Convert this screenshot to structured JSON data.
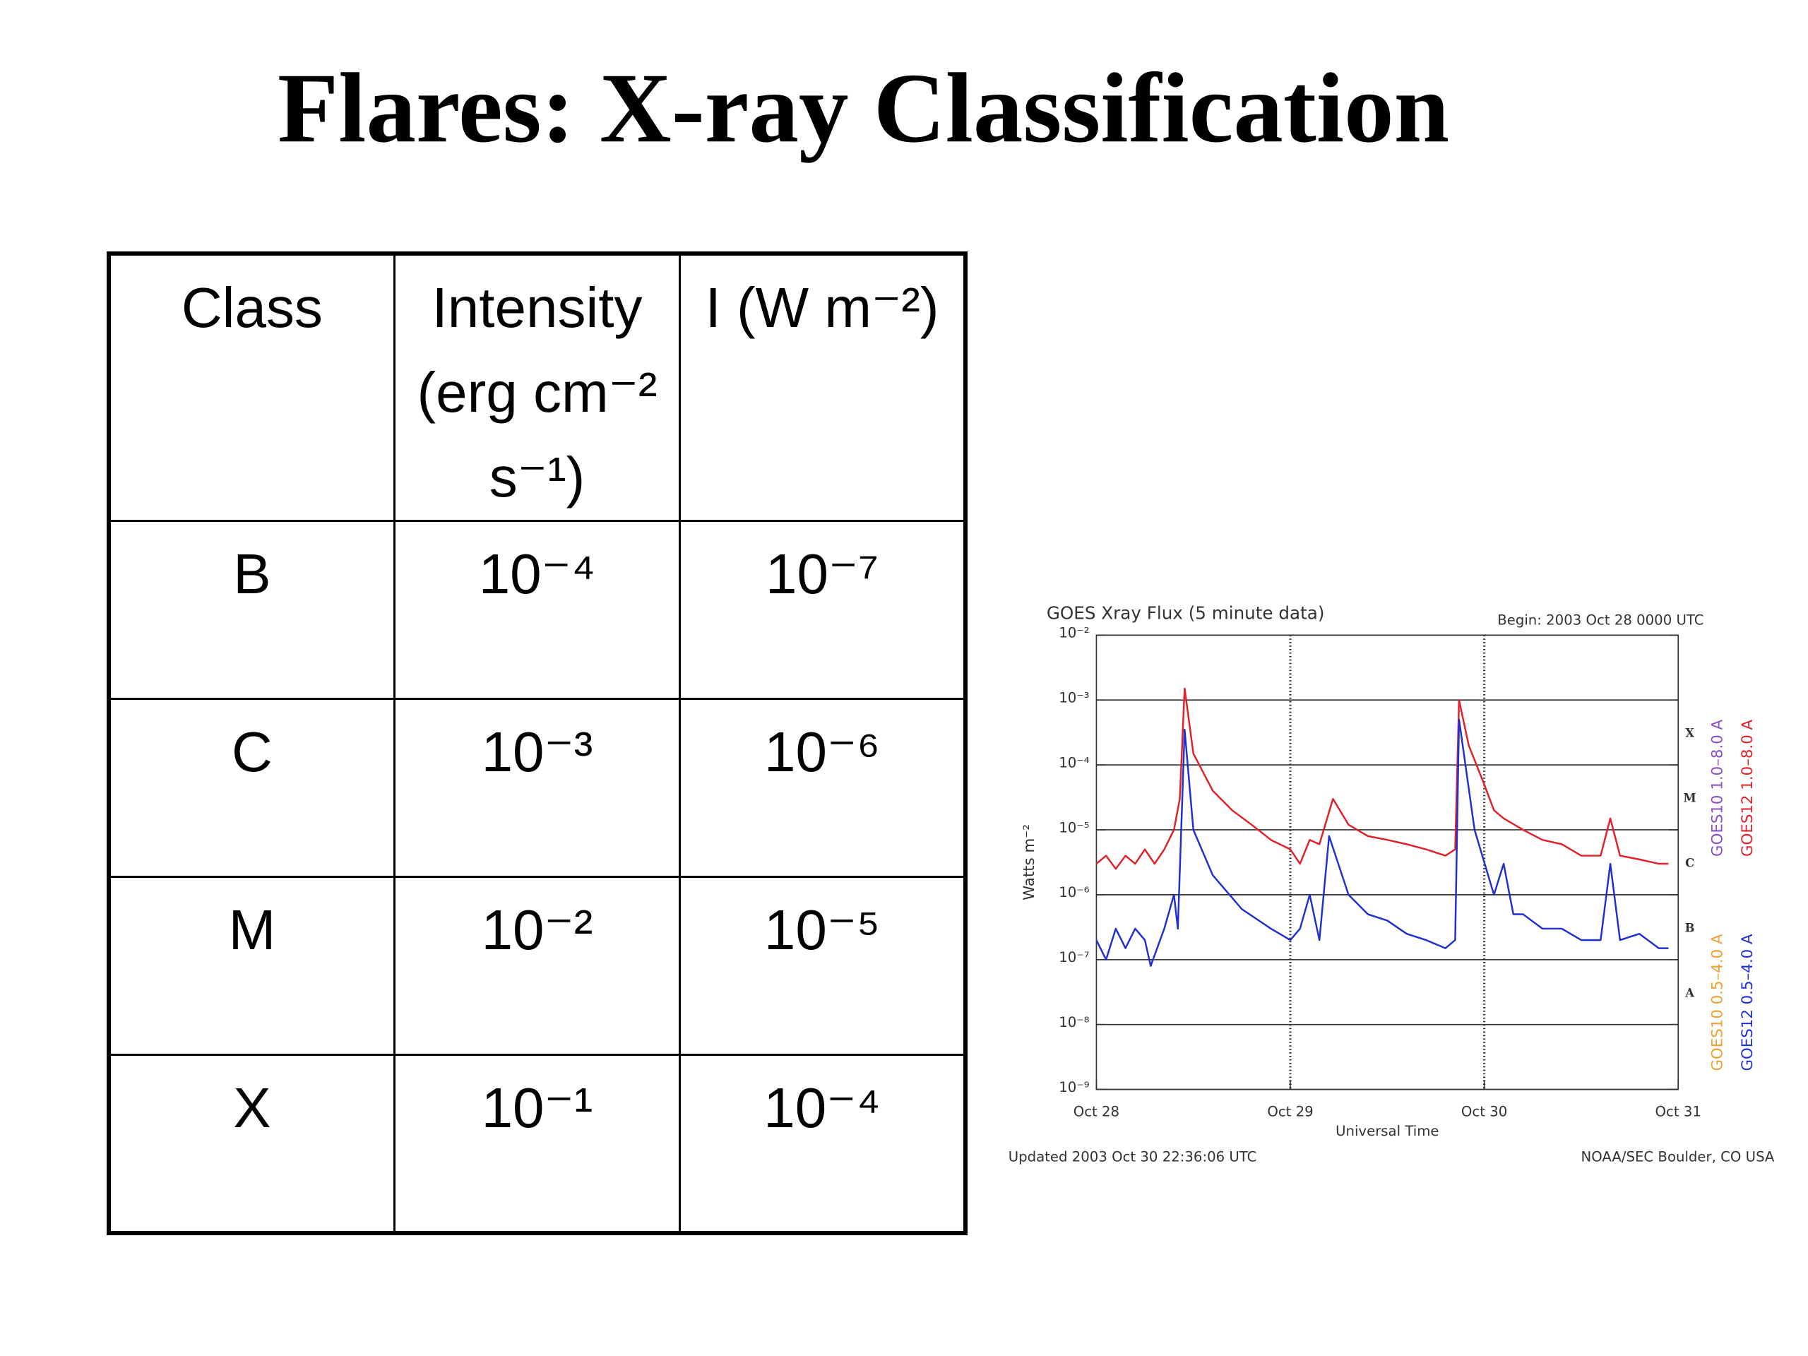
{
  "title": "Flares: X-ray Classification",
  "table": {
    "header": [
      "Class",
      "Intensity (erg cm⁻² s⁻¹)",
      "I (W m⁻²)"
    ],
    "rows": [
      [
        "B",
        "10⁻⁴",
        "10⁻⁷"
      ],
      [
        "C",
        "10⁻³",
        "10⁻⁶"
      ],
      [
        "M",
        "10⁻²",
        "10⁻⁵"
      ],
      [
        "X",
        "10⁻¹",
        "10⁻⁴"
      ]
    ]
  },
  "chart_data": {
    "type": "line",
    "title": "GOES Xray Flux (5 minute data)",
    "subtitle": "Begin:  2003 Oct 28 0000 UTC",
    "x_label": "Universal Time",
    "y_label": "Watts m⁻²",
    "footer_left": "Updated 2003 Oct 30 22:36:06 UTC",
    "footer_right": "NOAA/SEC Boulder, CO USA",
    "xlim": [
      0,
      3
    ],
    "xticks": [
      {
        "value": 0,
        "label": "Oct 28"
      },
      {
        "value": 1,
        "label": "Oct 29"
      },
      {
        "value": 2,
        "label": "Oct 30"
      },
      {
        "value": 3,
        "label": "Oct 31"
      }
    ],
    "ylim": [
      1e-09,
      0.01
    ],
    "log_scale": true,
    "grid": true,
    "yticks": [
      {
        "value": 1e-09,
        "label": "10⁻⁹"
      },
      {
        "value": 1e-08,
        "label": "10⁻⁸"
      },
      {
        "value": 1e-07,
        "label": "10⁻⁷"
      },
      {
        "value": 1e-06,
        "label": "10⁻⁶"
      },
      {
        "value": 1e-05,
        "label": "10⁻⁵"
      },
      {
        "value": 0.0001,
        "label": "10⁻⁴"
      },
      {
        "value": 0.001,
        "label": "10⁻³"
      },
      {
        "value": 0.01,
        "label": "10⁻²"
      }
    ],
    "class_labels": [
      {
        "label": "A",
        "value": 1e-08
      },
      {
        "label": "B",
        "value": 1e-07
      },
      {
        "label": "C",
        "value": 1e-06
      },
      {
        "label": "M",
        "value": 1e-05
      },
      {
        "label": "X",
        "value": 0.0001
      }
    ],
    "series": [
      {
        "name": "GOES10 1.0–8.0 A",
        "color": "#8a4fc4",
        "x": [],
        "values": []
      },
      {
        "name": "GOES12 1.0–8.0 A",
        "color": "#e0202a",
        "x": [
          0,
          0.05,
          0.1,
          0.15,
          0.2,
          0.25,
          0.3,
          0.35,
          0.4,
          0.43,
          0.455,
          0.5,
          0.6,
          0.7,
          0.8,
          0.9,
          1.0,
          1.05,
          1.1,
          1.15,
          1.22,
          1.3,
          1.4,
          1.5,
          1.6,
          1.7,
          1.8,
          1.85,
          1.87,
          1.92,
          2.0,
          2.05,
          2.1,
          2.2,
          2.3,
          2.4,
          2.5,
          2.6,
          2.65,
          2.7,
          2.8,
          2.9,
          2.95
        ],
        "values": [
          3e-06,
          4e-06,
          2.5e-06,
          4e-06,
          3e-06,
          5e-06,
          3e-06,
          5e-06,
          1e-05,
          3e-05,
          0.0015,
          0.00015,
          4e-05,
          2e-05,
          1.2e-05,
          7e-06,
          5e-06,
          3e-06,
          7e-06,
          6e-06,
          3e-05,
          1.2e-05,
          8e-06,
          7e-06,
          6e-06,
          5e-06,
          4e-06,
          5e-06,
          0.001,
          0.0002,
          5e-05,
          2e-05,
          1.5e-05,
          1e-05,
          7e-06,
          6e-06,
          4e-06,
          4e-06,
          1.5e-05,
          4e-06,
          3.5e-06,
          3e-06,
          3e-06
        ]
      },
      {
        "name": "GOES10 0.5–4.0 A",
        "color": "#f0a030",
        "x": [],
        "values": []
      },
      {
        "name": "GOES12 0.5–4.0 A",
        "color": "#2030d0",
        "x": [
          0,
          0.05,
          0.1,
          0.15,
          0.2,
          0.25,
          0.28,
          0.35,
          0.4,
          0.42,
          0.455,
          0.5,
          0.6,
          0.75,
          0.9,
          1.0,
          1.05,
          1.1,
          1.15,
          1.2,
          1.3,
          1.4,
          1.5,
          1.6,
          1.7,
          1.8,
          1.85,
          1.87,
          1.95,
          2.05,
          2.1,
          2.15,
          2.2,
          2.3,
          2.4,
          2.5,
          2.6,
          2.65,
          2.7,
          2.8,
          2.9,
          2.95
        ],
        "values": [
          2e-07,
          1e-07,
          3e-07,
          1.5e-07,
          3e-07,
          2e-07,
          8e-08,
          3e-07,
          1e-06,
          3e-07,
          0.00035,
          1e-05,
          2e-06,
          6e-07,
          3e-07,
          2e-07,
          3e-07,
          1e-06,
          2e-07,
          8e-06,
          1e-06,
          5e-07,
          4e-07,
          2.5e-07,
          2e-07,
          1.5e-07,
          2e-07,
          0.0005,
          1e-05,
          1e-06,
          3e-06,
          5e-07,
          5e-07,
          3e-07,
          3e-07,
          2e-07,
          2e-07,
          3e-06,
          2e-07,
          2.5e-07,
          1.5e-07,
          1.5e-07
        ]
      }
    ]
  }
}
